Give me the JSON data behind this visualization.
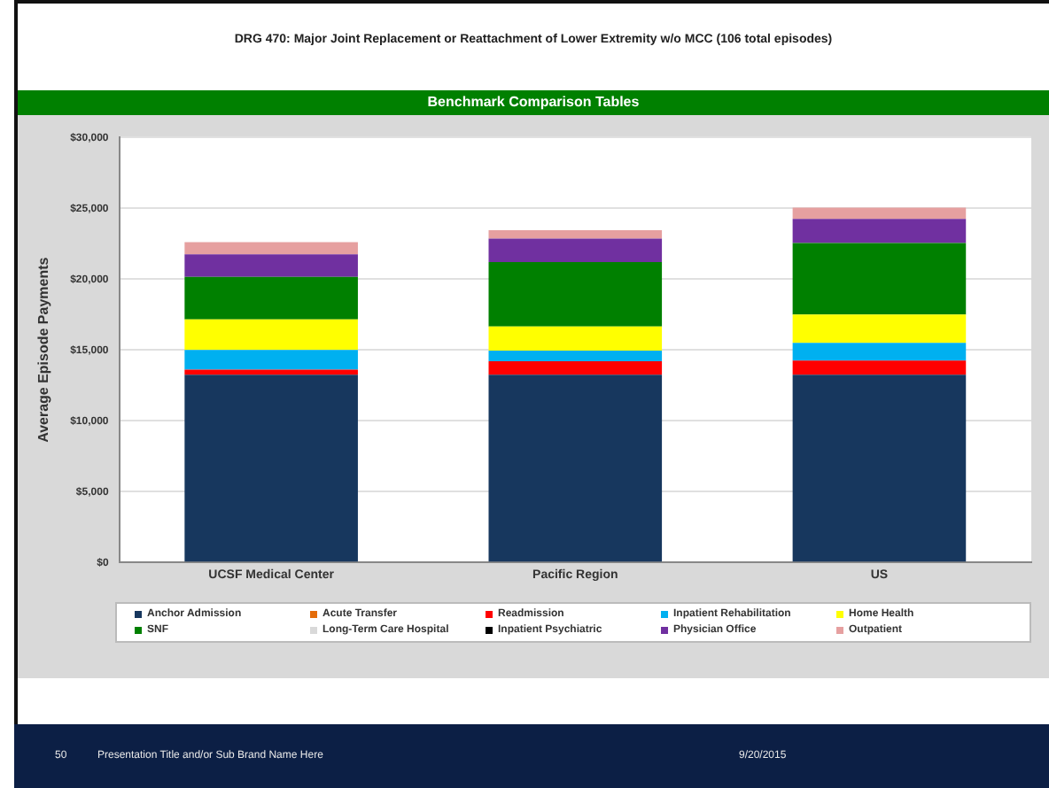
{
  "chart_data": {
    "type": "bar",
    "title": "DRG 470: Major Joint Replacement or Reattachment of Lower Extremity w/o MCC (106 total episodes)",
    "subtitle": "Benchmark Comparison Tables",
    "ylabel": "Average Episode Payments",
    "categories": [
      "UCSF Medical Center",
      "Pacific Region",
      "US"
    ],
    "stacked": true,
    "series": [
      {
        "name": "Anchor Admission",
        "color": "#17375e",
        "values": [
          13250,
          13250,
          13250
        ]
      },
      {
        "name": "Acute Transfer",
        "color": "#e46c0a",
        "values": [
          0,
          0,
          0
        ]
      },
      {
        "name": "Readmission",
        "color": "#ff0000",
        "values": [
          350,
          950,
          1000
        ]
      },
      {
        "name": "Inpatient Rehabilitation",
        "color": "#00b0f0",
        "values": [
          1400,
          750,
          1250
        ]
      },
      {
        "name": "Home Health",
        "color": "#ffff00",
        "values": [
          2150,
          1700,
          2000
        ]
      },
      {
        "name": "SNF",
        "color": "#008000",
        "values": [
          3000,
          4550,
          5050
        ]
      },
      {
        "name": "Long-Term Care Hospital",
        "color": "#d9d9d9",
        "values": [
          0,
          0,
          0
        ]
      },
      {
        "name": "Inpatient Psychiatric",
        "color": "#000000",
        "values": [
          0,
          0,
          0
        ]
      },
      {
        "name": "Physician Office",
        "color": "#7030a0",
        "values": [
          1600,
          1650,
          1700
        ]
      },
      {
        "name": "Outpatient",
        "color": "#e6a0a0",
        "values": [
          850,
          600,
          800
        ]
      }
    ],
    "ylim": [
      0,
      30000
    ],
    "yticks": [
      {
        "value": 0,
        "label": "$0"
      },
      {
        "value": 5000,
        "label": "$5,000"
      },
      {
        "value": 10000,
        "label": "$10,000"
      },
      {
        "value": 15000,
        "label": "$15,000"
      },
      {
        "value": 20000,
        "label": "$20,000"
      },
      {
        "value": 25000,
        "label": "$25,000"
      },
      {
        "value": 30000,
        "label": "$30,000"
      }
    ],
    "grid": "y",
    "legend": "bottom",
    "annotations": [
      "50",
      "Presentation Title and/or Sub Brand Name Here",
      "9/20/2015"
    ]
  }
}
